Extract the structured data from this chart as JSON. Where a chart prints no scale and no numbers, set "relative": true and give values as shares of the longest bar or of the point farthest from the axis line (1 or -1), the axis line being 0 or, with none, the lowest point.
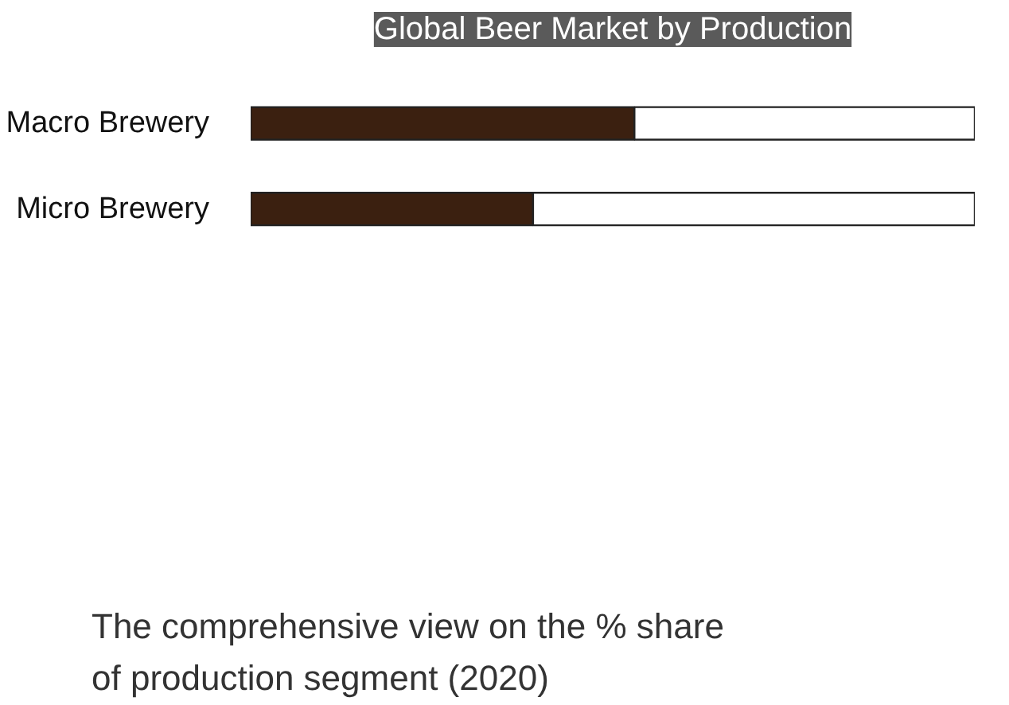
{
  "chart_data": {
    "type": "bar",
    "orientation": "horizontal",
    "stacked": true,
    "relative": true,
    "title": "Global Beer Market by Production",
    "categories": [
      "Macro Brewery",
      "Micro Brewery"
    ],
    "series": [
      {
        "color": "#3b2010",
        "values": [
          0.53,
          0.39
        ]
      },
      {
        "color": "#ffffff",
        "values": [
          0.47,
          0.61
        ]
      }
    ],
    "grid": false,
    "annotations": [
      "The comprehensive view on the % share of production segment (2020)"
    ]
  }
}
